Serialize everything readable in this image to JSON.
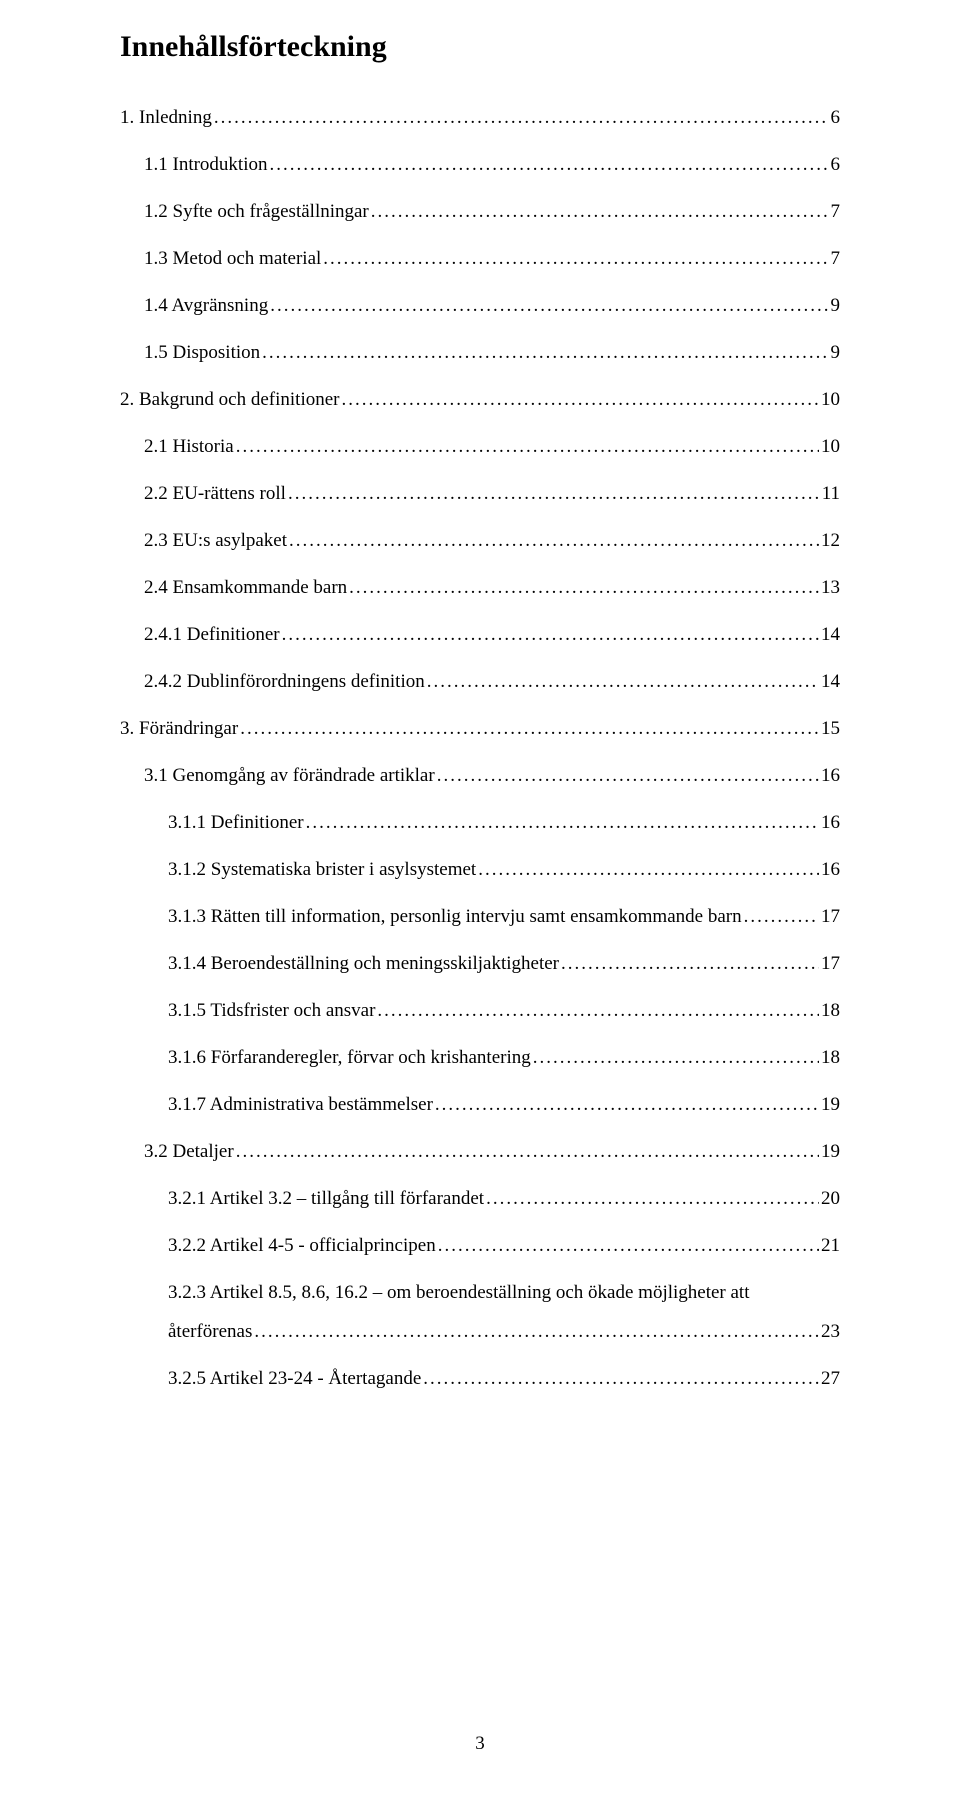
{
  "title": "Innehållsförteckning",
  "footer_page_number": "3",
  "colors": {
    "text": "#000000",
    "background": "#ffffff"
  },
  "typography": {
    "family": "Times New Roman",
    "title_size_pt": 22,
    "title_weight": "bold",
    "body_size_pt": 14
  },
  "entries": [
    {
      "level": 1,
      "label": "1. Inledning",
      "page": "6"
    },
    {
      "level": 2,
      "label": "1.1 Introduktion",
      "page": "6"
    },
    {
      "level": 2,
      "label": "1.2  Syfte och frågeställningar",
      "page": "7"
    },
    {
      "level": 2,
      "label": "1.3 Metod och material",
      "page": "7"
    },
    {
      "level": 2,
      "label": "1.4 Avgränsning",
      "page": "9"
    },
    {
      "level": 2,
      "label": "1.5 Disposition",
      "page": "9"
    },
    {
      "level": 1,
      "label": "2. Bakgrund och definitioner",
      "page": "10"
    },
    {
      "level": 2,
      "label": "2.1 Historia",
      "page": "10"
    },
    {
      "level": 2,
      "label": "2.2 EU-rättens roll",
      "page": "11"
    },
    {
      "level": 2,
      "label": "2.3 EU:s asylpaket",
      "page": "12"
    },
    {
      "level": 2,
      "label": "2.4 Ensamkommande barn",
      "page": "13"
    },
    {
      "level": 2,
      "label": "2.4.1 Definitioner",
      "page": "14"
    },
    {
      "level": 2,
      "label": "2.4.2 Dublinförordningens definition",
      "page": "14"
    },
    {
      "level": 1,
      "label": "3. Förändringar",
      "page": "15"
    },
    {
      "level": 2,
      "label": "3.1 Genomgång av förändrade artiklar",
      "page": "16"
    },
    {
      "level": 3,
      "label": "3.1.1 Definitioner",
      "page": "16"
    },
    {
      "level": 3,
      "label": "3.1.2 Systematiska brister i asylsystemet",
      "page": "16"
    },
    {
      "level": 3,
      "label": "3.1.3 Rätten till information, personlig intervju samt ensamkommande barn",
      "page": "17"
    },
    {
      "level": 3,
      "label": "3.1.4 Beroendeställning och meningsskiljaktigheter",
      "page": "17"
    },
    {
      "level": 3,
      "label": "3.1.5 Tidsfrister och ansvar",
      "page": "18"
    },
    {
      "level": 3,
      "label": "3.1.6 Förfaranderegler, förvar och krishantering",
      "page": "18"
    },
    {
      "level": 3,
      "label": "3.1.7 Administrativa bestämmelser",
      "page": "19"
    },
    {
      "level": 2,
      "label": "3.2 Detaljer",
      "page": "19"
    },
    {
      "level": 3,
      "label": "3.2.1 Artikel 3.2 – tillgång till förfarandet",
      "page": "20"
    },
    {
      "level": 3,
      "label": "3.2.2 Artikel 4-5 - officialprincipen",
      "page": "21"
    },
    {
      "level": 3,
      "label": "3.2.3 Artikel 8.5, 8.6, 16.2 – om beroendeställning och ökade möjligheter att",
      "page": "",
      "wrap_next": "återförenas",
      "wrap_page": "23"
    },
    {
      "level": 3,
      "label": "3.2.5 Artikel 23-24 - Återtagande",
      "page": "27"
    }
  ]
}
